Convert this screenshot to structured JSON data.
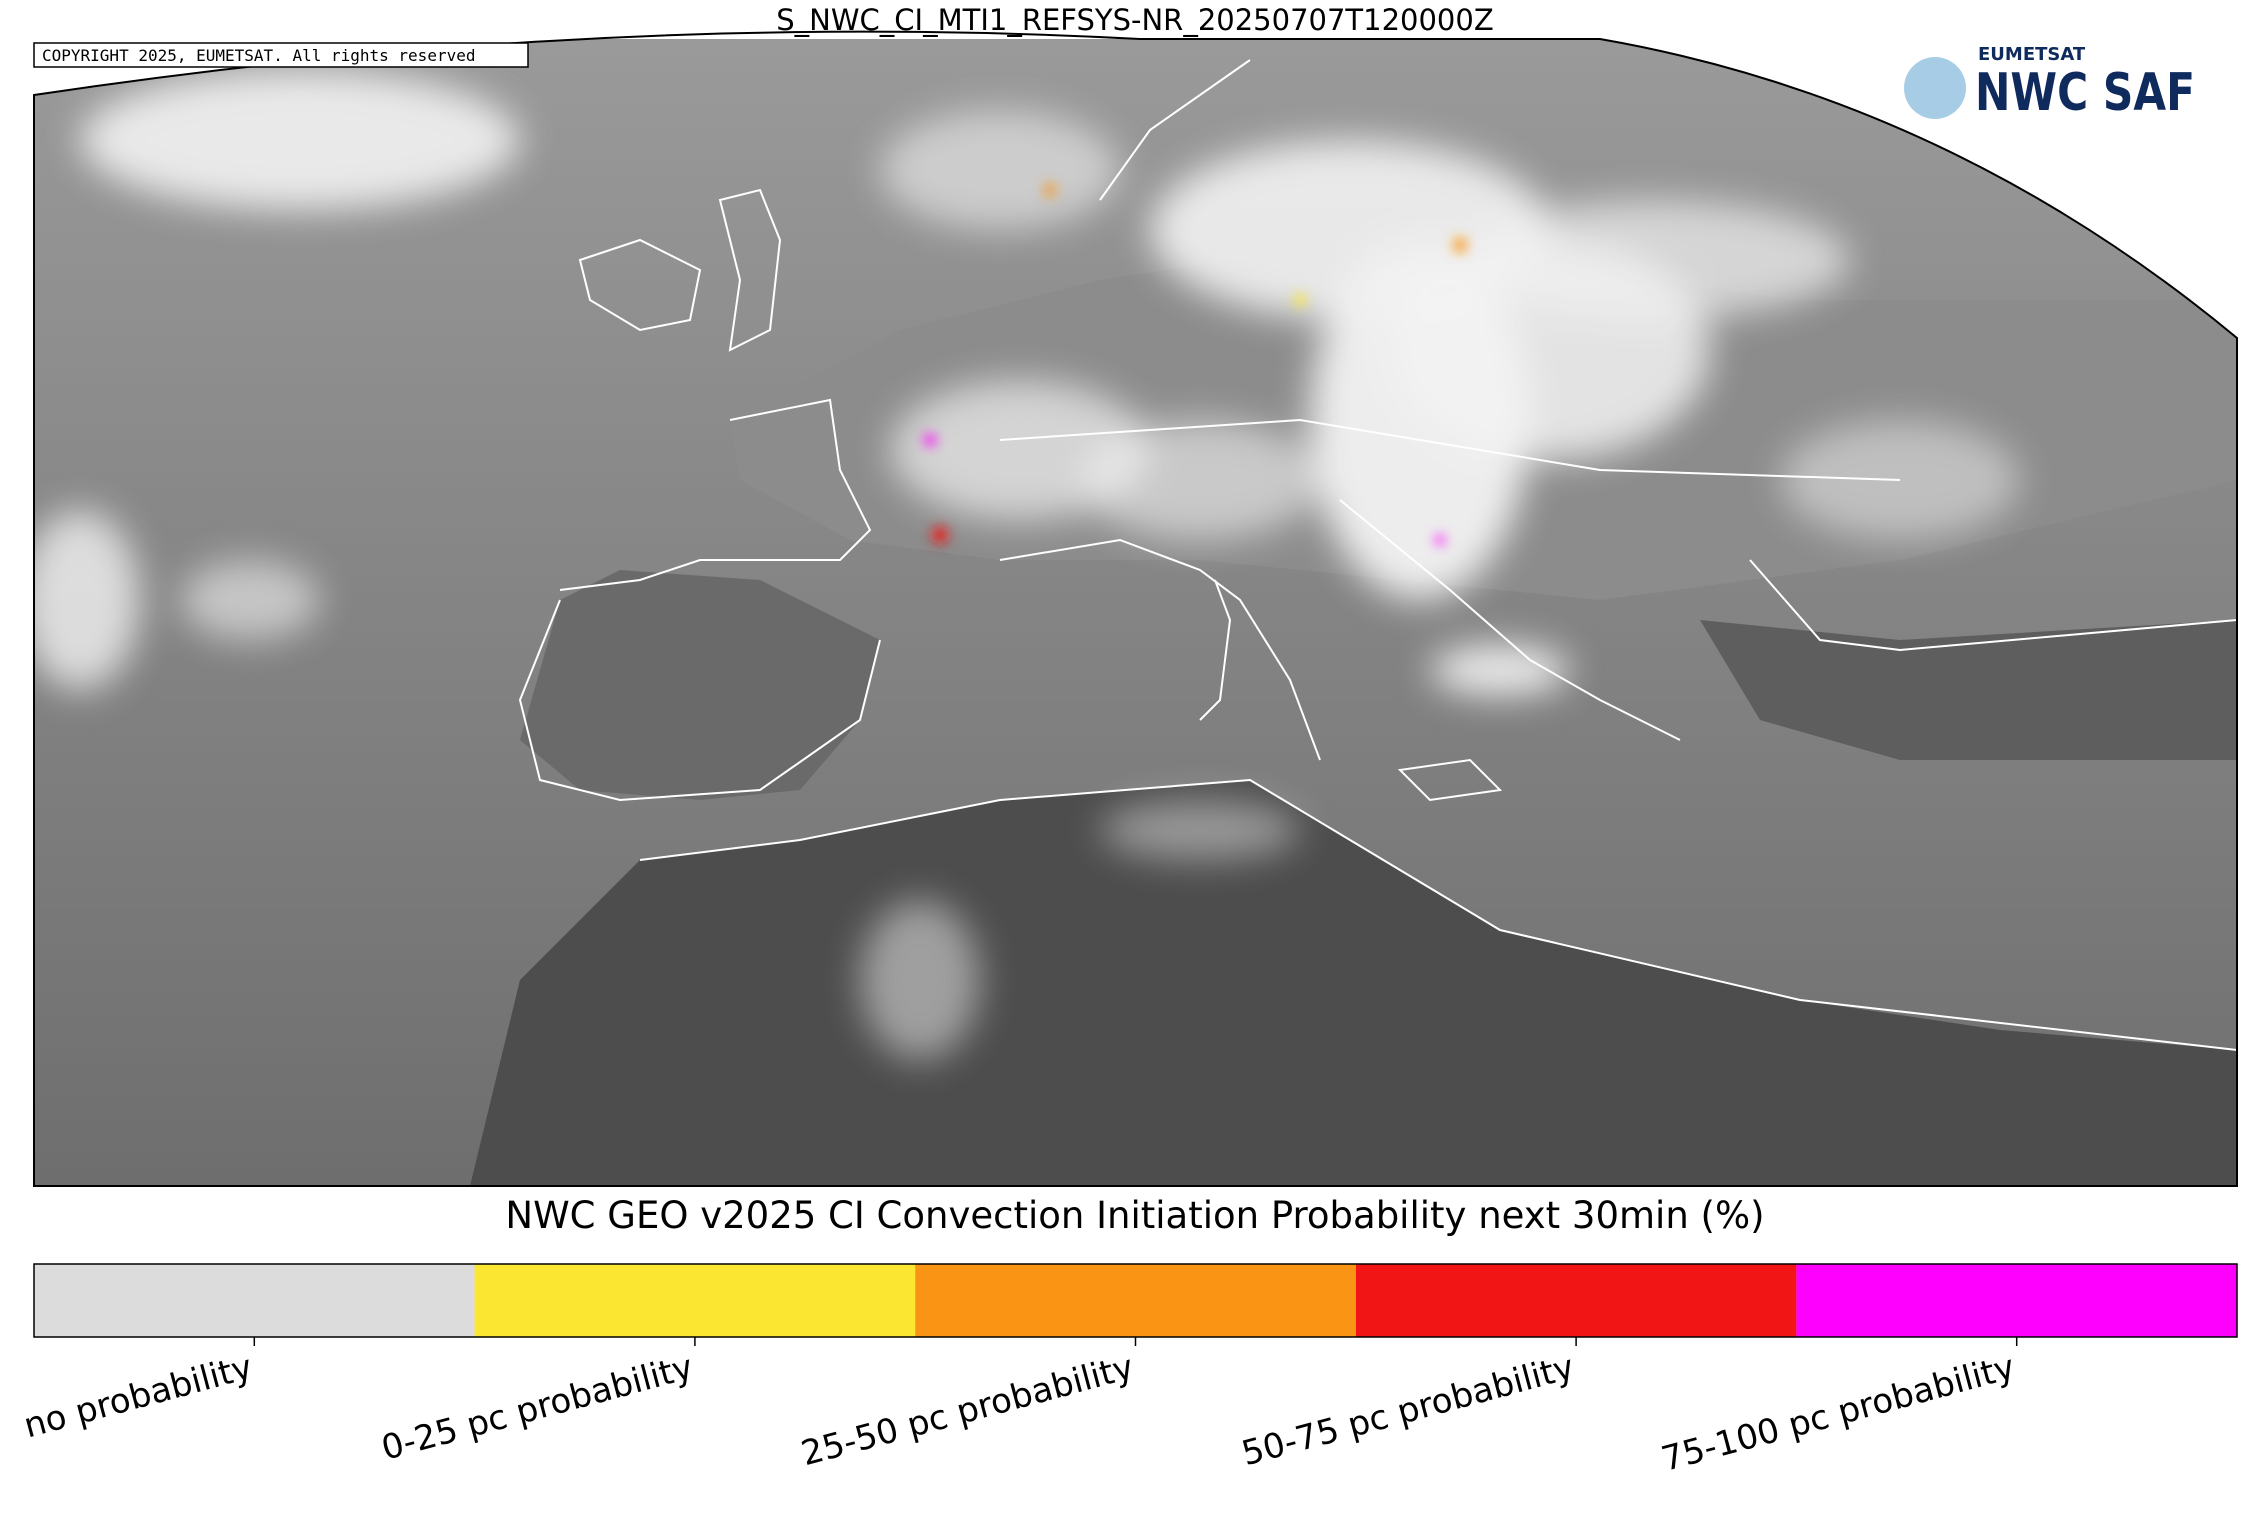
{
  "header": {
    "title": "S_NWC_CI_MTI1_REFSYS-NR_20250707T120000Z"
  },
  "map": {
    "copyright": "COPYRIGHT 2025, EUMETSAT. All rights reserved"
  },
  "logo": {
    "org": "EUMETSAT",
    "name": "NWC SAF"
  },
  "colorbar": {
    "title": "NWC GEO v2025 CI Convection Initiation Probability next 30min (%)",
    "categories": [
      "no probability",
      "0-25 pc probability",
      "25-50 pc probability",
      "50-75 pc probability",
      "75-100 pc probability"
    ],
    "colors": [
      "#dcdcdc",
      "#fbe731",
      "#fa9414",
      "#f21515",
      "#fe00fe"
    ]
  }
}
